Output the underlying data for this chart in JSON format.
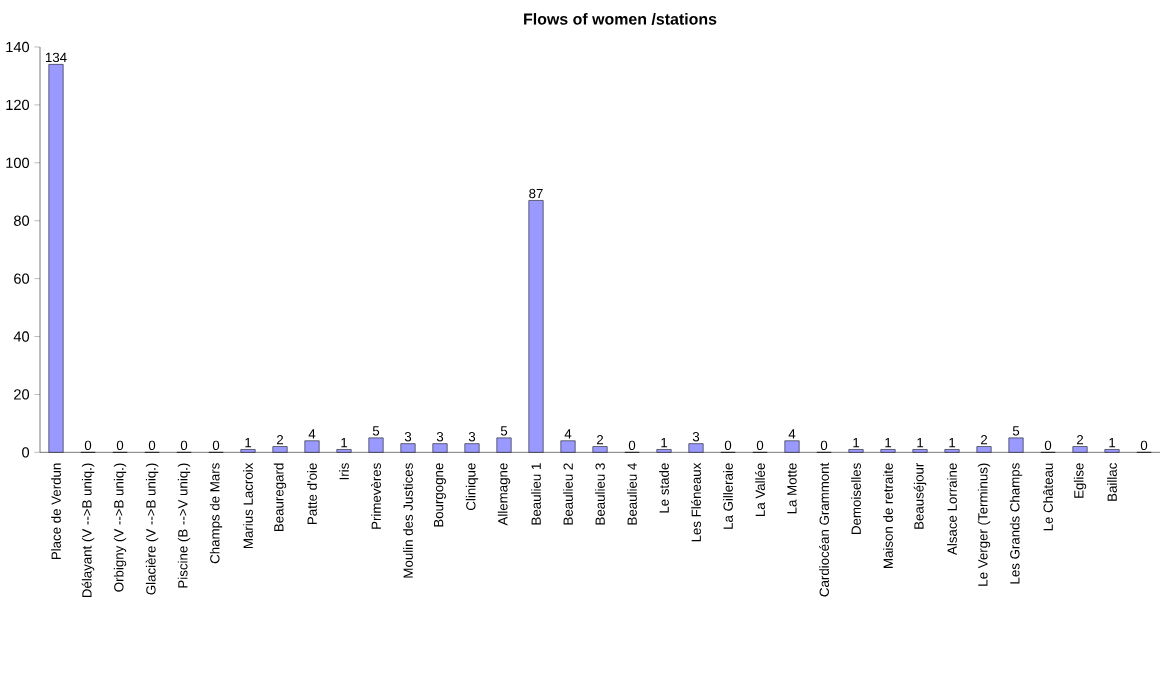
{
  "chart_data": {
    "type": "bar",
    "title": "Flows of women /stations",
    "categories": [
      "Place de Verdun",
      "Délayant (V -->B uniq.)",
      "Orbigny (V -->B uniq.)",
      "Glacière (V -->B uniq.)",
      "Piscine (B -->V uniq.)",
      "Champs de Mars",
      "Marius Lacroix",
      "Beauregard",
      "Patte d'oie",
      "Iris",
      "Primevères",
      "Moulin des Justices",
      "Bourgogne",
      "Clinique",
      "Allemagne",
      "Beaulieu 1",
      "Beaulieu 2",
      "Beaulieu 3",
      "Beaulieu 4",
      "Le stade",
      "Les Fléneaux",
      "La Gilleraie",
      "La Vallée",
      "La Motte",
      "Cardiocéan Grammont",
      "Demoiselles",
      "Maison de retraite",
      "Beauséjour",
      "Alsace Lorraine",
      "Le Verger (Terminus)",
      "Les Grands Champs",
      "Le Château",
      "Eglise",
      "Baillac",
      null
    ],
    "values": [
      134,
      0,
      0,
      0,
      0,
      0,
      1,
      2,
      4,
      1,
      5,
      3,
      3,
      3,
      5,
      87,
      4,
      2,
      0,
      1,
      3,
      0,
      0,
      4,
      0,
      1,
      1,
      1,
      1,
      2,
      5,
      0,
      2,
      1,
      0
    ],
    "color": "#9999ff",
    "ylim": [
      0,
      140
    ],
    "yticks": [
      0,
      20,
      40,
      60,
      80,
      100,
      120,
      140
    ],
    "grid": false,
    "data_labels": true
  }
}
